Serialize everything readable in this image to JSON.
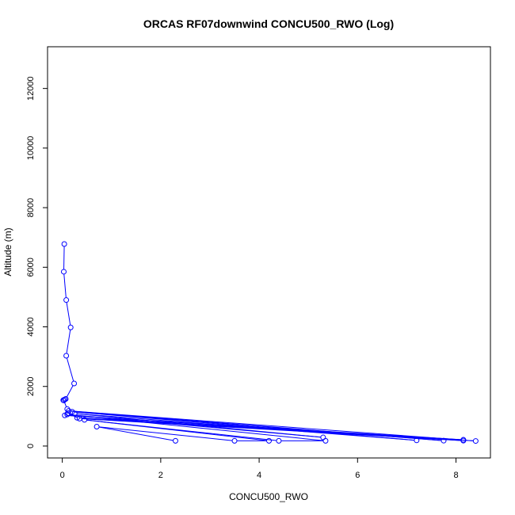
{
  "chart_data": {
    "type": "line",
    "title": "ORCAS RF07downwind CONCU500_RWO (Log)",
    "xlabel": "CONCU500_RWO",
    "ylabel": "Altitude (m)",
    "xlim": [
      -0.3,
      8.7
    ],
    "ylim": [
      -400,
      13400
    ],
    "xticks": [
      0,
      2,
      4,
      6,
      8
    ],
    "yticks": [
      0,
      2000,
      4000,
      6000,
      8000,
      10000,
      12000
    ],
    "grid": false,
    "legend": "none",
    "series": [
      {
        "color": "#0000ff",
        "marker": "open-circle",
        "points": [
          [
            0.04,
            6780
          ],
          [
            0.03,
            5850
          ],
          [
            0.08,
            4900
          ],
          [
            0.17,
            3980
          ],
          [
            0.08,
            3030
          ],
          [
            0.24,
            2100
          ],
          [
            0.07,
            1580
          ],
          [
            0.05,
            1560
          ],
          [
            0.02,
            1540
          ],
          [
            0.03,
            1530
          ],
          [
            0.1,
            1240
          ],
          [
            0.11,
            1100
          ],
          [
            0.35,
            920
          ],
          [
            8.15,
            180
          ],
          [
            0.05,
            1030
          ],
          [
            8.15,
            210
          ],
          [
            0.3,
            950
          ],
          [
            8.4,
            170
          ],
          [
            0.13,
            1180
          ],
          [
            7.75,
            180
          ],
          [
            0.2,
            1150
          ],
          [
            7.2,
            190
          ],
          [
            0.25,
            1090
          ],
          [
            5.3,
            290
          ],
          [
            0.1,
            1060
          ],
          [
            5.35,
            175
          ],
          [
            4.4,
            175
          ],
          [
            0.45,
            880
          ],
          [
            4.2,
            175
          ],
          [
            3.5,
            175
          ],
          [
            0.7,
            650
          ],
          [
            2.3,
            175
          ]
        ]
      }
    ]
  }
}
